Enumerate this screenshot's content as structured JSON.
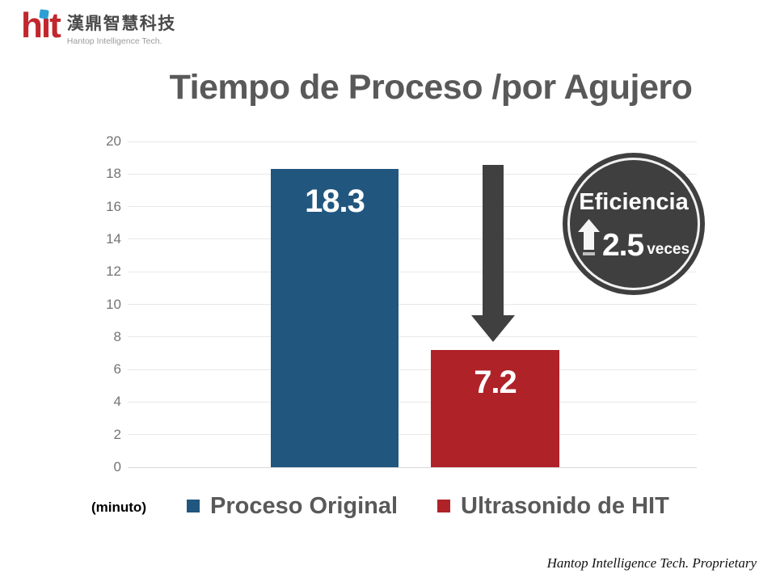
{
  "logo": {
    "brand": "hit",
    "chinese": "漢鼎智慧科技",
    "tagline": "Hantop Intelligence Tech."
  },
  "title": "Tiempo de Proceso /por Agujero",
  "chart_data": {
    "type": "bar",
    "title": "Tiempo de Proceso /por Agujero",
    "categories": [
      "Proceso Original",
      "Ultrasonido de HIT"
    ],
    "values": [
      18.3,
      7.2
    ],
    "data_labels": [
      "18.3",
      "7.2"
    ],
    "bar_colors": [
      "#21567F",
      "#AF2228"
    ],
    "unit_label": "(minuto)",
    "xlabel": "",
    "ylabel": "",
    "ylim": [
      0,
      20
    ],
    "ytick_step": 2,
    "grid": true,
    "legend_position": "bottom"
  },
  "badge": {
    "title": "Eficiencia",
    "value": "2.5",
    "suffix": "veces"
  },
  "footer": "Hantop Intelligence Tech. Proprietary",
  "colors": {
    "bar_blue": "#21567F",
    "bar_red": "#AF2228",
    "annotation_gray": "#404040",
    "title_gray": "#595959",
    "logo_red": "#C1272D",
    "logo_blue": "#2E9FD4"
  }
}
